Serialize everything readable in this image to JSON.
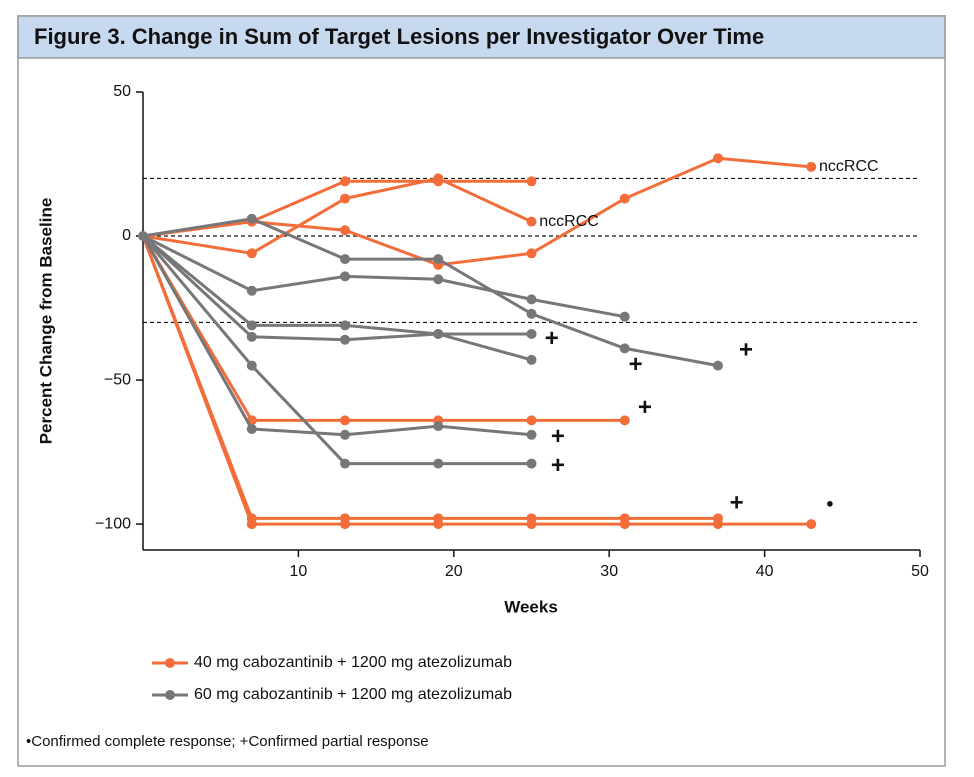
{
  "chart_data": {
    "type": "spider",
    "title": "Figure 3. Change in Sum of Target Lesions per Investigator Over Time",
    "x_label": "Weeks",
    "y_label": "Percent Change from Baseline",
    "xlim": [
      0,
      50
    ],
    "xticks": [
      10,
      20,
      30,
      40,
      50
    ],
    "ylim": [
      -109,
      50
    ],
    "yticks": [
      50,
      0,
      {
        "value": -50,
        "label": "−50"
      },
      {
        "value": -100,
        "label": "−100"
      }
    ],
    "reference_lines": [
      20,
      0,
      -30
    ],
    "x": [
      0,
      7,
      13,
      19,
      25,
      31,
      37,
      43
    ],
    "series": [
      {
        "name": "40 mg cabozantinib + 1200 mg atezolizumab",
        "color": "#f26d3a",
        "lines": [
          {
            "values": [
              0,
              5,
              19,
              19,
              19,
              null,
              null,
              null
            ]
          },
          {
            "values": [
              0,
              5,
              2,
              -10,
              -6,
              13,
              27,
              24
            ]
          },
          {
            "values": [
              0,
              -6,
              13,
              20,
              5,
              null,
              null,
              null
            ]
          },
          {
            "values": [
              0,
              -64,
              -64,
              -64,
              -64,
              -64,
              null,
              null
            ]
          },
          {
            "values": [
              0,
              -98,
              -98,
              -98,
              -98,
              -98,
              -98,
              null
            ]
          },
          {
            "values": [
              0,
              -100,
              -100,
              -100,
              -100,
              -100,
              -100,
              -100
            ]
          }
        ]
      },
      {
        "name": "60 mg cabozantinib + 1200 mg atezolizumab",
        "color": "#77777a",
        "lines": [
          {
            "values": [
              0,
              6,
              -8,
              -8,
              -27,
              -39,
              -45,
              null
            ]
          },
          {
            "values": [
              0,
              -19,
              -14,
              -15,
              -22,
              -28,
              null,
              null
            ]
          },
          {
            "values": [
              0,
              -31,
              -31,
              -34,
              -43,
              null,
              null,
              null
            ]
          },
          {
            "values": [
              0,
              -35,
              -36,
              -34,
              -34,
              null,
              null,
              null
            ]
          },
          {
            "values": [
              0,
              -45,
              -79,
              -79,
              -79,
              null,
              null,
              null
            ]
          },
          {
            "values": [
              0,
              -67,
              -69,
              -66,
              -69,
              null,
              null,
              null
            ]
          }
        ]
      }
    ],
    "annotations": [
      {
        "text": "nccRCC",
        "x": 25.5,
        "y": 5
      },
      {
        "text": "nccRCC",
        "x": 43.5,
        "y": 24
      }
    ],
    "markers": [
      {
        "symbol": "+",
        "x": 26.3,
        "y": -36
      },
      {
        "symbol": "+",
        "x": 31.7,
        "y": -45
      },
      {
        "symbol": "+",
        "x": 38.8,
        "y": -40
      },
      {
        "symbol": "+",
        "x": 32.3,
        "y": -60
      },
      {
        "symbol": "+",
        "x": 26.7,
        "y": -70
      },
      {
        "symbol": "+",
        "x": 26.7,
        "y": -80
      },
      {
        "symbol": "+",
        "x": 38.2,
        "y": -93
      },
      {
        "symbol": "●",
        "x": 44.2,
        "y": -93
      }
    ],
    "footnote": "•Confirmed complete response; +Confirmed partial response"
  }
}
